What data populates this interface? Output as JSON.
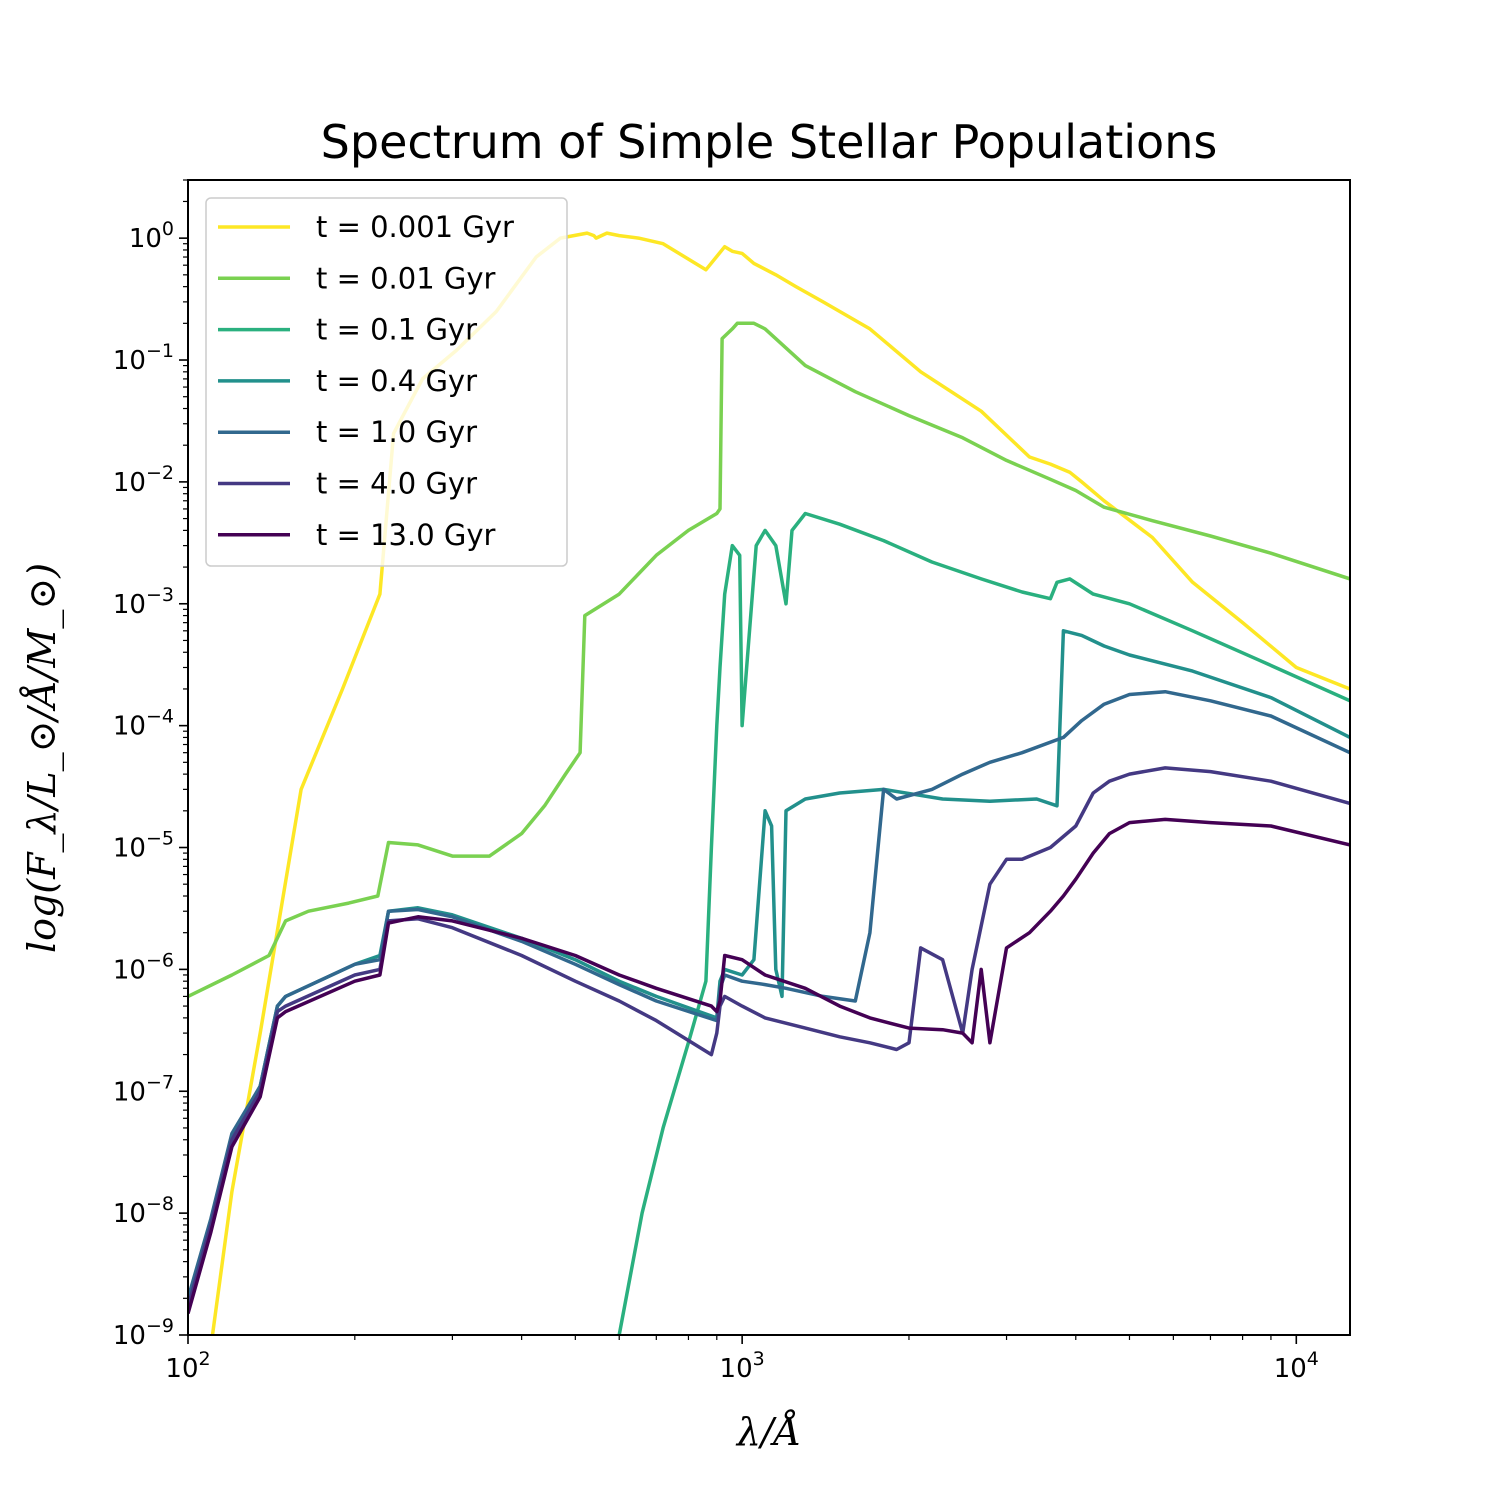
{
  "chart_data": {
    "type": "line",
    "title": "Spectrum of Simple Stellar Populations",
    "xlabel": "λ/Å",
    "ylabel": "log(F_λ/L_⊙/Å/M_⊙)",
    "x_scale": "log",
    "y_scale": "log",
    "xlim": [
      100,
      12500
    ],
    "ylim": [
      1e-09,
      3
    ],
    "grid": false,
    "legend_position": "top-left",
    "x_ticks": [
      {
        "value": 100,
        "base": "10",
        "exp": "2"
      },
      {
        "value": 1000,
        "base": "10",
        "exp": "3"
      },
      {
        "value": 10000,
        "base": "10",
        "exp": "4"
      }
    ],
    "y_ticks": [
      {
        "value": 1,
        "base": "10",
        "exp": "0"
      },
      {
        "value": 0.1,
        "base": "10",
        "exp": "−1"
      },
      {
        "value": 0.01,
        "base": "10",
        "exp": "−2"
      },
      {
        "value": 0.001,
        "base": "10",
        "exp": "−3"
      },
      {
        "value": 0.0001,
        "base": "10",
        "exp": "−4"
      },
      {
        "value": 1e-05,
        "base": "10",
        "exp": "−5"
      },
      {
        "value": 1e-06,
        "base": "10",
        "exp": "−6"
      },
      {
        "value": 1e-07,
        "base": "10",
        "exp": "−7"
      },
      {
        "value": 1e-08,
        "base": "10",
        "exp": "−8"
      },
      {
        "value": 1e-09,
        "base": "10",
        "exp": "−9"
      }
    ],
    "series": [
      {
        "name": "t = 0.001 Gyr",
        "color": "#fde725",
        "x": [
          110,
          120,
          135,
          160,
          190,
          222,
          235,
          265,
          305,
          360,
          425,
          470,
          525,
          540,
          545,
          570,
          600,
          650,
          720,
          860,
          930,
          960,
          1000,
          1050,
          1150,
          1250,
          1400,
          1700,
          2100,
          2700,
          3300,
          3600,
          3900,
          4100,
          4500,
          5500,
          6500,
          8000,
          10000,
          12500
        ],
        "y": [
          8e-10,
          1.5e-08,
          3e-07,
          3e-05,
          0.0002,
          0.0012,
          0.025,
          0.07,
          0.12,
          0.25,
          0.7,
          1.0,
          1.1,
          1.05,
          1.0,
          1.1,
          1.05,
          1.0,
          0.9,
          0.55,
          0.85,
          0.78,
          0.75,
          0.62,
          0.5,
          0.4,
          0.3,
          0.18,
          0.08,
          0.038,
          0.016,
          0.014,
          0.012,
          0.01,
          0.007,
          0.0035,
          0.0015,
          0.0007,
          0.0003,
          0.0002
        ]
      },
      {
        "name": "t = 0.01 Gyr",
        "color": "#7ad151",
        "x": [
          100,
          120,
          140,
          150,
          165,
          195,
          220,
          230,
          260,
          300,
          350,
          400,
          440,
          480,
          510,
          520,
          600,
          700,
          800,
          900,
          912,
          920,
          960,
          980,
          1050,
          1100,
          1300,
          1600,
          2000,
          2500,
          3000,
          3600,
          4000,
          4500,
          5500,
          7000,
          9000,
          12500
        ],
        "y": [
          6e-07,
          9e-07,
          1.3e-06,
          2.5e-06,
          3e-06,
          3.5e-06,
          4e-06,
          1.1e-05,
          1.05e-05,
          8.5e-06,
          8.5e-06,
          1.3e-05,
          2.2e-05,
          4e-05,
          6e-05,
          0.0008,
          0.0012,
          0.0025,
          0.004,
          0.0055,
          0.006,
          0.15,
          0.18,
          0.2,
          0.2,
          0.18,
          0.09,
          0.055,
          0.035,
          0.023,
          0.015,
          0.0105,
          0.0085,
          0.0062,
          0.0048,
          0.0036,
          0.0026,
          0.0016
        ]
      },
      {
        "name": "t = 0.1 Gyr",
        "color": "#2ab07f",
        "x": [
          600,
          660,
          720,
          800,
          860,
          880,
          900,
          912,
          930,
          960,
          990,
          1000,
          1060,
          1100,
          1150,
          1200,
          1230,
          1300,
          1500,
          1800,
          2200,
          2700,
          3200,
          3600,
          3700,
          3900,
          4300,
          5000,
          6500,
          8500,
          12500
        ],
        "y": [
          1e-09,
          1e-08,
          5e-08,
          2.5e-07,
          8e-07,
          1e-05,
          0.0001,
          0.0003,
          0.0012,
          0.003,
          0.0025,
          0.0001,
          0.003,
          0.004,
          0.003,
          0.001,
          0.004,
          0.0055,
          0.0045,
          0.0033,
          0.0022,
          0.0016,
          0.00125,
          0.0011,
          0.0015,
          0.0016,
          0.0012,
          0.001,
          0.0006,
          0.00035,
          0.00016
        ]
      },
      {
        "name": "t = 0.4 Gyr",
        "color": "#22908c",
        "x": [
          100,
          110,
          120,
          135,
          145,
          150,
          200,
          222,
          230,
          260,
          300,
          400,
          500,
          600,
          700,
          900,
          912,
          930,
          1000,
          1050,
          1100,
          1130,
          1150,
          1180,
          1200,
          1300,
          1500,
          1800,
          2300,
          2800,
          3400,
          3700,
          3800,
          4100,
          4500,
          5000,
          6500,
          9000,
          12500
        ],
        "y": [
          2e-09,
          8e-09,
          4e-08,
          1.1e-07,
          5e-07,
          6e-07,
          1.1e-06,
          1.3e-06,
          3e-06,
          3.2e-06,
          2.8e-06,
          1.8e-06,
          1.2e-06,
          8e-07,
          6e-07,
          4e-07,
          8e-07,
          1e-06,
          9e-07,
          1.2e-06,
          2e-05,
          1.5e-05,
          1e-06,
          6e-07,
          2e-05,
          2.5e-05,
          2.8e-05,
          3e-05,
          2.5e-05,
          2.4e-05,
          2.5e-05,
          2.2e-05,
          0.0006,
          0.00055,
          0.00045,
          0.00038,
          0.00028,
          0.00017,
          8e-05
        ]
      },
      {
        "name": "t = 1.0 Gyr",
        "color": "#31688e",
        "x": [
          100,
          110,
          120,
          135,
          145,
          150,
          200,
          222,
          230,
          260,
          300,
          400,
          500,
          600,
          700,
          900,
          912,
          930,
          1000,
          1100,
          1200,
          1400,
          1600,
          1700,
          1800,
          1900,
          2200,
          2500,
          2800,
          3200,
          3800,
          4100,
          4500,
          5000,
          5800,
          7000,
          9000,
          12500
        ],
        "y": [
          2e-09,
          9e-09,
          4.5e-08,
          1.1e-07,
          5e-07,
          6e-07,
          1.1e-06,
          1.2e-06,
          3e-06,
          3.1e-06,
          2.7e-06,
          1.7e-06,
          1.1e-06,
          7.5e-07,
          5.5e-07,
          3.8e-07,
          7e-07,
          9e-07,
          8e-07,
          7.5e-07,
          7e-07,
          6e-07,
          5.5e-07,
          2e-06,
          3e-05,
          2.5e-05,
          3e-05,
          4e-05,
          5e-05,
          6e-05,
          8e-05,
          0.00011,
          0.00015,
          0.00018,
          0.00019,
          0.00016,
          0.00012,
          6e-05
        ]
      },
      {
        "name": "t = 4.0 Gyr",
        "color": "#443983",
        "x": [
          100,
          110,
          120,
          135,
          145,
          150,
          200,
          222,
          230,
          260,
          300,
          400,
          500,
          600,
          700,
          880,
          900,
          912,
          930,
          1000,
          1100,
          1300,
          1500,
          1700,
          1900,
          2000,
          2100,
          2300,
          2500,
          2600,
          2800,
          3000,
          3200,
          3600,
          4000,
          4300,
          4600,
          5000,
          5800,
          7000,
          9000,
          12500
        ],
        "y": [
          1.7e-09,
          8e-09,
          4e-08,
          1e-07,
          4.5e-07,
          5e-07,
          9e-07,
          1e-06,
          2.5e-06,
          2.6e-06,
          2.2e-06,
          1.3e-06,
          8e-07,
          5.5e-07,
          3.8e-07,
          2e-07,
          3e-07,
          5e-07,
          6e-07,
          5e-07,
          4e-07,
          3.3e-07,
          2.8e-07,
          2.5e-07,
          2.2e-07,
          2.5e-07,
          1.5e-06,
          1.2e-06,
          3e-07,
          1e-06,
          5e-06,
          8e-06,
          8e-06,
          1e-05,
          1.5e-05,
          2.8e-05,
          3.5e-05,
          4e-05,
          4.5e-05,
          4.2e-05,
          3.5e-05,
          2.3e-05
        ]
      },
      {
        "name": "t = 13.0 Gyr",
        "color": "#440154",
        "x": [
          100,
          110,
          120,
          135,
          145,
          150,
          200,
          222,
          230,
          260,
          300,
          400,
          500,
          600,
          700,
          880,
          900,
          912,
          930,
          1000,
          1100,
          1300,
          1500,
          1700,
          2000,
          2300,
          2500,
          2600,
          2700,
          2800,
          3000,
          3300,
          3600,
          3800,
          4000,
          4300,
          4600,
          5000,
          5800,
          7000,
          9000,
          12500
        ],
        "y": [
          1.5e-09,
          7e-09,
          3.5e-08,
          9e-08,
          4e-07,
          4.5e-07,
          8e-07,
          9e-07,
          2.4e-06,
          2.7e-06,
          2.5e-06,
          1.8e-06,
          1.3e-06,
          9e-07,
          7e-07,
          5e-07,
          4.5e-07,
          5.5e-07,
          1.3e-06,
          1.2e-06,
          9e-07,
          7e-07,
          5e-07,
          4e-07,
          3.3e-07,
          3.2e-07,
          3e-07,
          2.5e-07,
          1e-06,
          2.5e-07,
          1.5e-06,
          2e-06,
          3e-06,
          4e-06,
          5.5e-06,
          9e-06,
          1.3e-05,
          1.6e-05,
          1.7e-05,
          1.6e-05,
          1.5e-05,
          1.05e-05
        ]
      }
    ]
  }
}
